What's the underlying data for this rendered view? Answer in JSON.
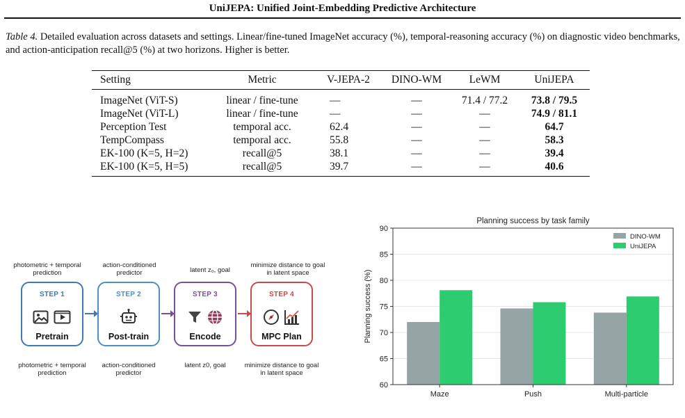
{
  "header": {
    "title": "UniJEPA: Unified Joint-Embedding Predictive Architecture"
  },
  "caption": {
    "label": "Table 4.",
    "text": " Detailed evaluation across datasets and settings. Linear/fine-tuned ImageNet accuracy (%), temporal-reasoning accuracy (%) on diagnostic video benchmarks, and action-anticipation recall@5 (%) at two horizons. Higher is better."
  },
  "table": {
    "headers": [
      "Setting",
      "Metric",
      "V-JEPA-2",
      "DINO-WM",
      "LeWM",
      "UniJEPA"
    ],
    "rows": [
      [
        "ImageNet (ViT-S)",
        "linear / fine-tune",
        "—",
        "—",
        "71.4 / 77.2",
        "73.8 / 79.5"
      ],
      [
        "ImageNet (ViT-L)",
        "linear / fine-tune",
        "—",
        "—",
        "—",
        "74.9 / 81.1"
      ],
      [
        "Perception Test",
        "temporal acc.",
        "62.4",
        "—",
        "—",
        "64.7"
      ],
      [
        "TempCompass",
        "temporal acc.",
        "55.8",
        "—",
        "—",
        "58.3"
      ],
      [
        "EK-100 (K=5, H=2)",
        "recall@5",
        "38.1",
        "—",
        "—",
        "39.4"
      ],
      [
        "EK-100 (K=5, H=5)",
        "recall@5",
        "39.7",
        "—",
        "—",
        "40.6"
      ]
    ]
  },
  "pipeline": {
    "steps": [
      {
        "label": "STEP 1",
        "name": "Pretrain",
        "top_note": "photometric + temporal prediction",
        "bottom_note": "photometric + temporal prediction",
        "icons": "image-icon, video-icon",
        "color": "#3f78b5"
      },
      {
        "label": "STEP 2",
        "name": "Post-train",
        "top_note": "action-conditioned predictor",
        "bottom_note": "action-conditioned predictor",
        "icons": "robot-icon",
        "color": "#4b8fc6"
      },
      {
        "label": "STEP 3",
        "name": "Encode",
        "top_note": "latent z₀, goal",
        "bottom_note": "latent z0, goal",
        "icons": "funnel-icon, globe-icon",
        "color": "#7a4f9a"
      },
      {
        "label": "STEP 4",
        "name": "MPC Plan",
        "top_note": "minimize distance to goal in latent space",
        "bottom_note": "minimize distance to goal in latent space",
        "icons": "compass-icon, chart-icon",
        "color": "#c84a4a"
      }
    ]
  },
  "chart_data": {
    "type": "bar",
    "title": "Planning success by task family",
    "ylabel": "Planning success (%)",
    "xlabel": "",
    "categories": [
      "Maze",
      "Push",
      "Multi-particle"
    ],
    "series": [
      {
        "name": "DINO-WM",
        "values": [
          72.0,
          74.6,
          73.8
        ],
        "color": "#95a5a6"
      },
      {
        "name": "UniJEPA",
        "values": [
          78.1,
          75.8,
          76.9
        ],
        "color": "#2ecc71"
      }
    ],
    "ylim": [
      60,
      90
    ],
    "yticks": [
      60,
      65,
      70,
      75,
      80,
      85,
      90
    ],
    "grid": true,
    "legend": "top-right"
  }
}
